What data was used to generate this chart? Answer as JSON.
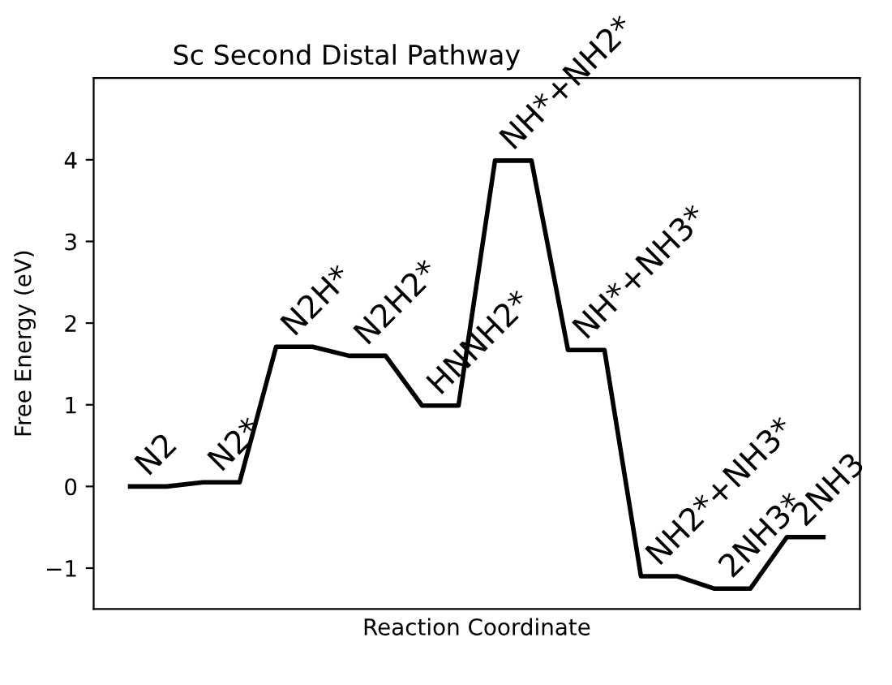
{
  "chart_data": {
    "type": "line",
    "title": "Sc Second Distal Pathway",
    "xlabel": "Reaction Coordinate",
    "ylabel": "Free Energy (eV)",
    "categories": [
      null,
      null,
      null,
      null,
      null,
      null,
      null,
      null,
      null,
      null,
      null,
      null,
      null,
      null,
      null,
      null,
      null,
      null,
      null,
      null
    ],
    "series": [
      {
        "color": "#000000",
        "values": [
          0,
          0,
          0.05,
          0.05,
          1.71,
          1.71,
          1.6,
          1.6,
          0.99,
          0.99,
          3.99,
          3.99,
          1.67,
          1.67,
          -1.1,
          -1.1,
          -1.25,
          -1.25,
          -0.62,
          -0.62
        ]
      }
    ],
    "ylim": [
      -1.5,
      5.0
    ],
    "yticks": [
      {
        "value": -1,
        "label": "−1"
      },
      0,
      1,
      2,
      3,
      4
    ],
    "tick_labels": "y",
    "grid": false,
    "marker": "none",
    "line_style": "solid",
    "annotations": [
      "N2",
      "N2*",
      "N2H*",
      "N2H2*",
      "HNNH2*",
      "NH*+NH2*",
      "NH*+NH3*",
      "NH2*+NH3*",
      "2NH3*",
      "2NH3"
    ]
  }
}
